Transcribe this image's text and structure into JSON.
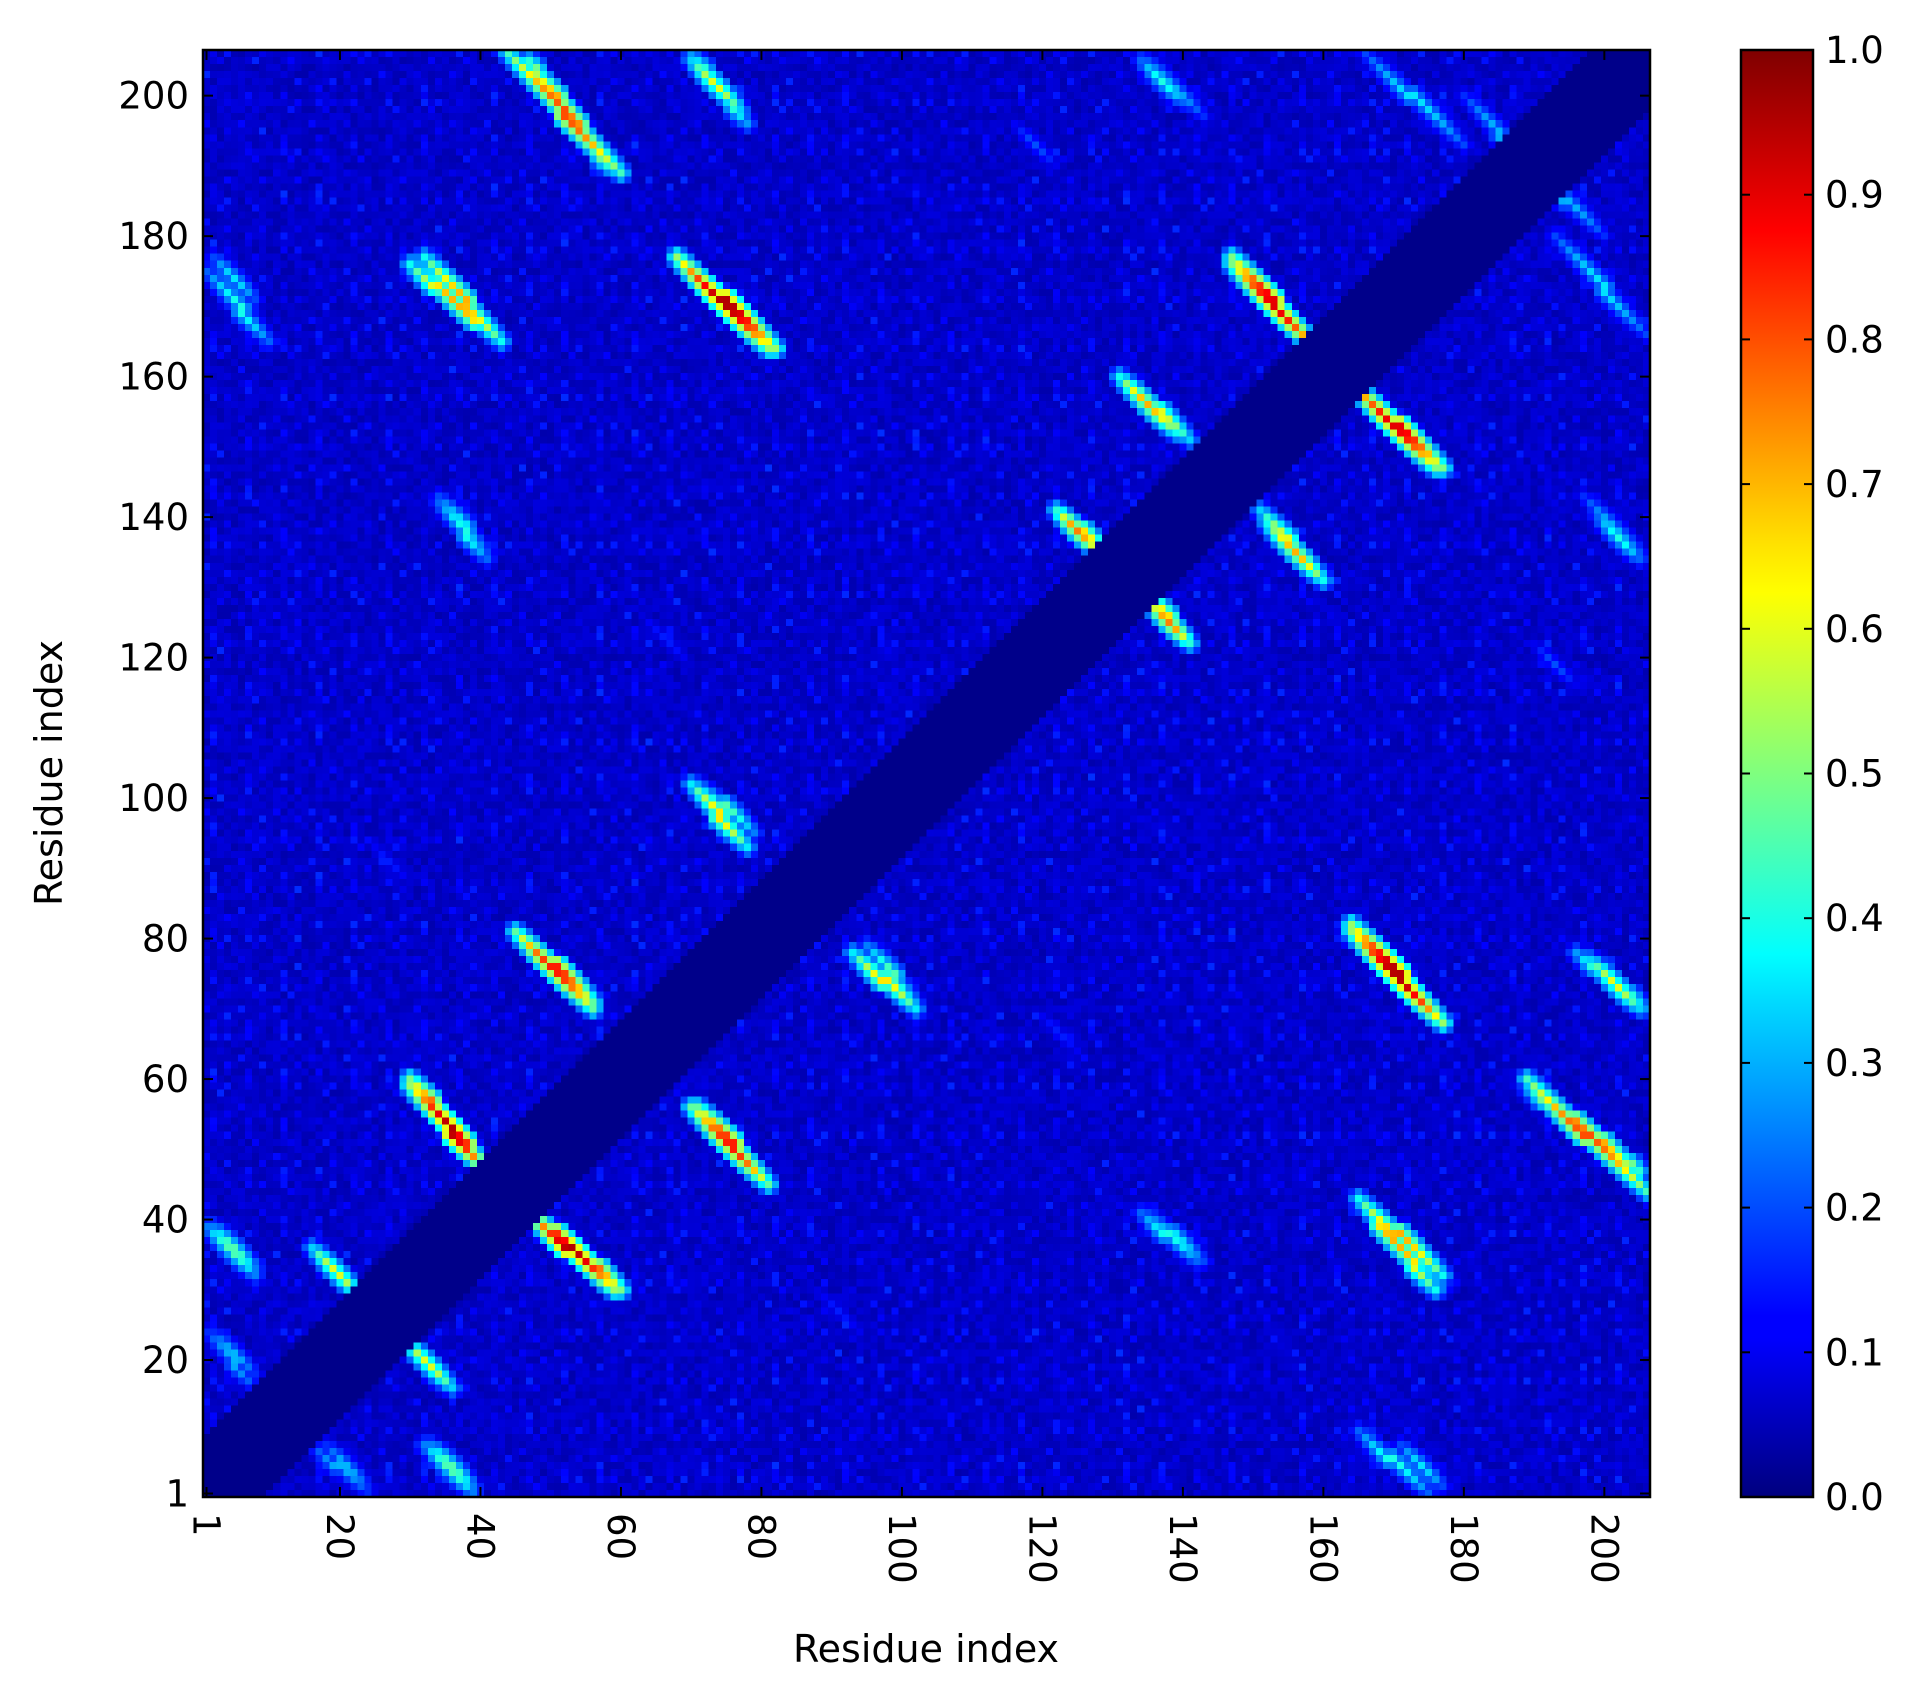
{
  "chart_data": {
    "type": "heatmap",
    "title": "",
    "xlabel": "Residue index",
    "ylabel": "Residue index",
    "n_residues": 206,
    "xlim": [
      1,
      206
    ],
    "ylim": [
      1,
      206
    ],
    "x_ticks": [
      1,
      20,
      40,
      60,
      80,
      100,
      120,
      140,
      160,
      180,
      200
    ],
    "y_ticks": [
      1,
      20,
      40,
      60,
      80,
      100,
      120,
      140,
      160,
      180,
      200
    ],
    "x_tick_labels": [
      "1",
      "20",
      "40",
      "60",
      "80",
      "100",
      "120",
      "140",
      "160",
      "180",
      "200"
    ],
    "y_tick_labels": [
      "1",
      "20",
      "40",
      "60",
      "80",
      "100",
      "120",
      "140",
      "160",
      "180",
      "200"
    ],
    "x_tick_rotation": "vertical",
    "colormap": "jet",
    "color_range": [
      0.0,
      1.0
    ],
    "colorbar_ticks": [
      0.0,
      0.1,
      0.2,
      0.3,
      0.4,
      0.5,
      0.6,
      0.7,
      0.8,
      0.9,
      1.0
    ],
    "colorbar_tick_labels": [
      "0.0",
      "0.1",
      "0.2",
      "0.3",
      "0.4",
      "0.5",
      "0.6",
      "0.7",
      "0.8",
      "0.9",
      "1.0"
    ],
    "background_value": 0.08,
    "diagonal_exclusion_halfwidth": 8,
    "symmetric": true,
    "contact_segments": [
      {
        "x_from": 2,
        "y_from": 39,
        "x_to": 8,
        "y_to": 33,
        "peak": 0.45
      },
      {
        "x_from": 17,
        "y_from": 35,
        "x_to": 23,
        "y_to": 29,
        "peak": 0.5
      },
      {
        "x_from": 2,
        "y_from": 24,
        "x_to": 8,
        "y_to": 18,
        "peak": 0.3
      },
      {
        "x_from": 16,
        "y_from": 8,
        "x_to": 24,
        "y_to": 1,
        "peak": 0.3
      },
      {
        "x_from": 29,
        "y_from": 23,
        "x_to": 36,
        "y_to": 16,
        "peak": 0.6
      },
      {
        "x_from": 32,
        "y_from": 8,
        "x_to": 39,
        "y_to": 1,
        "peak": 0.45
      },
      {
        "x_from": 30,
        "y_from": 60,
        "x_to": 41,
        "y_to": 47,
        "peak": 0.9
      },
      {
        "x_from": 47,
        "y_from": 41,
        "x_to": 59,
        "y_to": 30,
        "peak": 0.95
      },
      {
        "x_from": 71,
        "y_from": 56,
        "x_to": 81,
        "y_to": 45,
        "peak": 0.85
      },
      {
        "x_from": 45,
        "y_from": 81,
        "x_to": 56,
        "y_to": 70,
        "peak": 0.85
      },
      {
        "x_from": 70,
        "y_from": 102,
        "x_to": 78,
        "y_to": 93,
        "peak": 0.65
      },
      {
        "x_from": 95,
        "y_from": 79,
        "x_to": 102,
        "y_to": 71,
        "peak": 0.45
      },
      {
        "x_from": 47,
        "y_from": 205,
        "x_to": 58,
        "y_to": 190,
        "peak": 0.75
      },
      {
        "x_from": 70,
        "y_from": 205,
        "x_to": 77,
        "y_to": 198,
        "peak": 0.6
      },
      {
        "x_from": 32,
        "y_from": 177,
        "x_to": 43,
        "y_to": 165,
        "peak": 0.7
      },
      {
        "x_from": 68,
        "y_from": 177,
        "x_to": 81,
        "y_to": 164,
        "peak": 0.95
      },
      {
        "x_from": 2,
        "y_from": 177,
        "x_to": 8,
        "y_to": 171,
        "peak": 0.35
      },
      {
        "x_from": 34,
        "y_from": 143,
        "x_to": 41,
        "y_to": 135,
        "peak": 0.35
      },
      {
        "x_from": 131,
        "y_from": 160,
        "x_to": 139,
        "y_to": 152,
        "peak": 0.7
      },
      {
        "x_from": 122,
        "y_from": 141,
        "x_to": 128,
        "y_to": 135,
        "peak": 0.75
      },
      {
        "x_from": 135,
        "y_from": 129,
        "x_to": 140,
        "y_to": 123,
        "peak": 0.65
      },
      {
        "x_from": 147,
        "y_from": 177,
        "x_to": 159,
        "y_to": 164,
        "peak": 0.9
      },
      {
        "x_from": 164,
        "y_from": 159,
        "x_to": 176,
        "y_to": 147,
        "peak": 0.9
      },
      {
        "x_from": 151,
        "y_from": 141,
        "x_to": 159,
        "y_to": 132,
        "peak": 0.6
      },
      {
        "x_from": 164,
        "y_from": 82,
        "x_to": 177,
        "y_to": 68,
        "peak": 0.95
      },
      {
        "x_from": 165,
        "y_from": 43,
        "x_to": 176,
        "y_to": 30,
        "peak": 0.7
      },
      {
        "x_from": 189,
        "y_from": 60,
        "x_to": 206,
        "y_to": 44,
        "peak": 0.8
      },
      {
        "x_from": 196,
        "y_from": 78,
        "x_to": 206,
        "y_to": 70,
        "peak": 0.5
      },
      {
        "x_from": 134,
        "y_from": 41,
        "x_to": 142,
        "y_to": 34,
        "peak": 0.4
      },
      {
        "x_from": 165,
        "y_from": 10,
        "x_to": 175,
        "y_to": 1,
        "peak": 0.4
      },
      {
        "x_from": 134,
        "y_from": 205,
        "x_to": 140,
        "y_to": 199,
        "peak": 0.4
      },
      {
        "x_from": 193,
        "y_from": 180,
        "x_to": 206,
        "y_to": 166,
        "peak": 0.35
      },
      {
        "x_from": 197,
        "y_from": 143,
        "x_to": 206,
        "y_to": 134,
        "peak": 0.3
      },
      {
        "x_from": 180,
        "y_from": 200,
        "x_to": 189,
        "y_to": 190,
        "peak": 0.3
      },
      {
        "x_from": 190,
        "y_from": 122,
        "x_to": 196,
        "y_to": 116,
        "peak": 0.2
      },
      {
        "x_from": 88,
        "y_from": 30,
        "x_to": 94,
        "y_to": 24,
        "peak": 0.15
      },
      {
        "x_from": 119,
        "y_from": 70,
        "x_to": 126,
        "y_to": 63,
        "peak": 0.15
      }
    ]
  }
}
